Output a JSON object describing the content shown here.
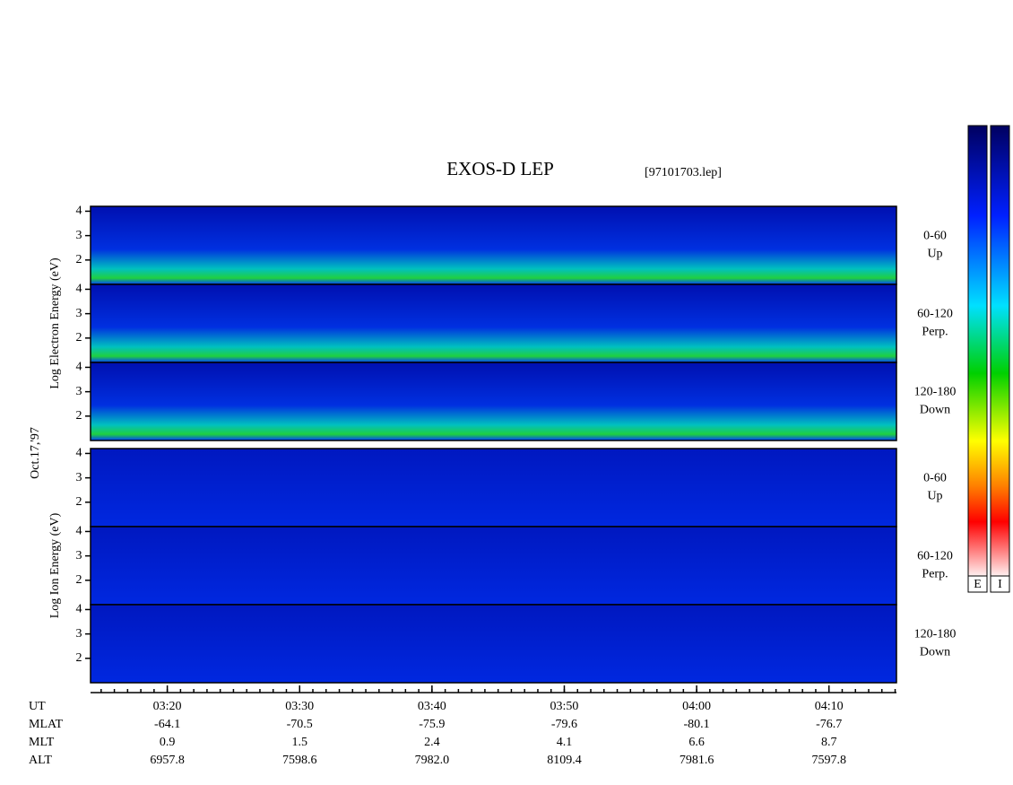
{
  "chart_data": {
    "type": "spectrogram",
    "title": "EXOS-D LEP",
    "file": "[97101703.lep]",
    "date": "Oct.17,'97",
    "xlim": [
      14.2,
      75.1
    ],
    "xticks": [
      {
        "value": 20,
        "label": "03:20"
      },
      {
        "value": 30,
        "label": "03:30"
      },
      {
        "value": 40,
        "label": "03:40"
      },
      {
        "value": 50,
        "label": "03:50"
      },
      {
        "value": 60,
        "label": "04:00"
      },
      {
        "value": 70,
        "label": "04:10"
      }
    ],
    "xlabel": "UT",
    "ylim": [
      1,
      4.2
    ],
    "yticks": [
      2,
      3,
      4
    ],
    "groups": [
      {
        "ylabel": "Log Electron Energy (eV)",
        "panels": [
          {
            "angle": "0-60",
            "dir": "Up"
          },
          {
            "angle": "60-120",
            "dir": "Perp."
          },
          {
            "angle": "120-180",
            "dir": "Down"
          }
        ]
      },
      {
        "ylabel": "Log Ion Energy (eV)",
        "panels": [
          {
            "angle": "0-60",
            "dir": "Up"
          },
          {
            "angle": "60-120",
            "dir": "Perp."
          },
          {
            "angle": "120-180",
            "dir": "Down"
          }
        ]
      }
    ],
    "ephemeris": [
      {
        "name": "MLAT",
        "values": [
          "-64.1",
          "-70.5",
          "-75.9",
          "-79.6",
          "-80.1",
          "-76.7"
        ]
      },
      {
        "name": "MLT",
        "values": [
          "0.9",
          "1.5",
          "2.4",
          "4.1",
          "6.6",
          "8.7"
        ]
      },
      {
        "name": "ALT",
        "values": [
          "6957.8",
          "7598.6",
          "7982.0",
          "8109.4",
          "7981.6",
          "7597.8"
        ]
      }
    ],
    "colorbars": [
      "E",
      "I"
    ]
  }
}
